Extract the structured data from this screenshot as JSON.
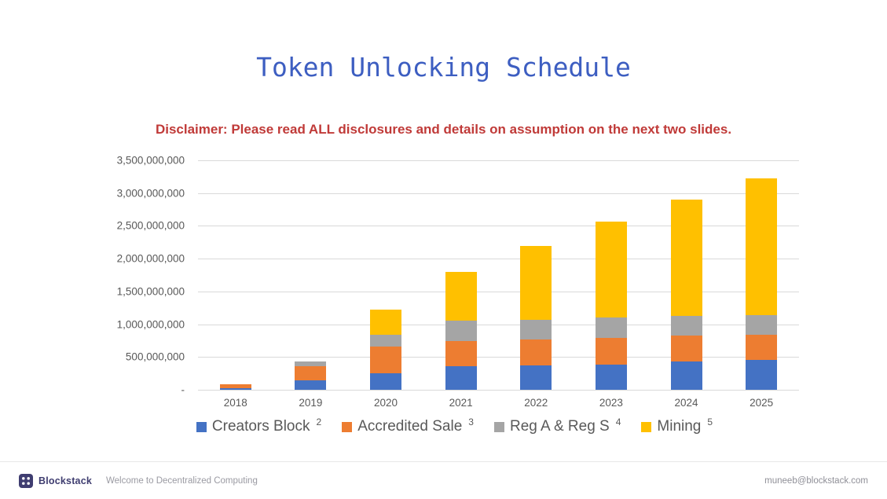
{
  "slide": {
    "title": "Token Unlocking Schedule",
    "disclaimer": "Disclaimer: Please read ALL disclosures and details on assumption on the next two slides."
  },
  "chart_data": {
    "type": "bar",
    "stacked": true,
    "title": "Token Unlocking Schedule",
    "xlabel": "",
    "ylabel": "",
    "categories": [
      "2018",
      "2019",
      "2020",
      "2021",
      "2022",
      "2023",
      "2024",
      "2025"
    ],
    "series": [
      {
        "name": "Creators Block",
        "superscript": "2",
        "color": "#4472C4",
        "values": [
          20000000,
          140000000,
          250000000,
          360000000,
          370000000,
          385000000,
          430000000,
          455000000
        ]
      },
      {
        "name": "Accredited Sale",
        "superscript": "3",
        "color": "#ED7D31",
        "values": [
          60000000,
          220000000,
          410000000,
          380000000,
          400000000,
          410000000,
          395000000,
          390000000
        ]
      },
      {
        "name": "Reg A & Reg S",
        "superscript": "4",
        "color": "#A5A5A5",
        "values": [
          0,
          75000000,
          185000000,
          320000000,
          300000000,
          305000000,
          305000000,
          300000000
        ]
      },
      {
        "name": "Mining",
        "superscript": "5",
        "color": "#FFC000",
        "values": [
          0,
          0,
          375000000,
          740000000,
          1130000000,
          1460000000,
          1770000000,
          2075000000
        ]
      }
    ],
    "ylim": [
      0,
      3500000000
    ],
    "ytick_step": 500000000,
    "ytick_labels": [
      "3,500,000,000",
      "3,000,000,000",
      "2,500,000,000",
      "2,000,000,000",
      "1,500,000,000",
      "1,000,000,000",
      "500,000,000",
      "-"
    ],
    "grid": true,
    "gridline_color": "#D9D9D9",
    "legend_position": "bottom",
    "axis_text_color": "#595959"
  },
  "footer": {
    "brand": "Blockstack",
    "tagline": "Welcome to Decentralized Computing",
    "email": "muneeb@blockstack.com",
    "logo_color": "#3F3D70"
  },
  "theme": {
    "title_color": "#3D5EC1",
    "disclaimer_color": "#C03A38",
    "background": "#FFFFFF"
  }
}
